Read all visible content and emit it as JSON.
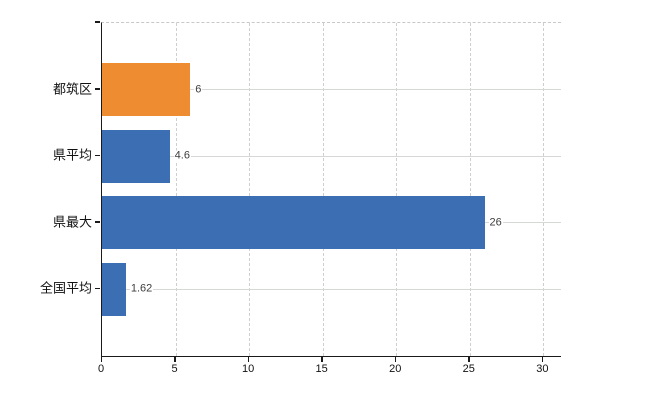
{
  "chart_data": {
    "type": "bar",
    "orientation": "horizontal",
    "categories": [
      "都筑区",
      "県平均",
      "県最大",
      "全国平均"
    ],
    "values": [
      6,
      4.6,
      26,
      1.62
    ],
    "value_labels": [
      "6",
      "4.6",
      "26",
      "1.62"
    ],
    "bar_colors": [
      "#ee8c31",
      "#3c6eb4",
      "#3c6eb4",
      "#3c6eb4"
    ],
    "xticks": [
      0,
      5,
      10,
      15,
      20,
      25,
      30
    ],
    "xtick_labels": [
      "0",
      "5",
      "10",
      "15",
      "20",
      "25",
      "30"
    ],
    "xlim": [
      0,
      31.2
    ],
    "title": "",
    "xlabel": "",
    "ylabel": "",
    "grid": "on",
    "legend": "none",
    "colors": {
      "highlight_bar": "#ee8c31",
      "default_bar": "#3c6eb4",
      "axis": "#1a1a1a",
      "gridline": "#d5d8d5",
      "value_text": "#3c3c3c",
      "background": "#ffffff"
    }
  }
}
